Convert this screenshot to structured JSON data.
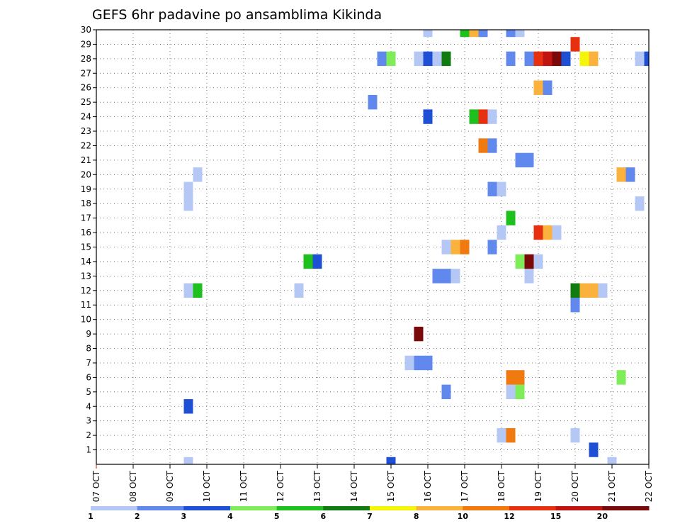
{
  "chart_data": {
    "type": "heatmap",
    "title": "GEFS 6hr padavine po ansamblima Kikinda",
    "x_tick_labels": [
      "07 OCT",
      "08 OCT",
      "09 OCT",
      "10 OCT",
      "11 OCT",
      "12 OCT",
      "13 OCT",
      "14 OCT",
      "15 OCT",
      "16 OCT",
      "17 OCT",
      "18 OCT",
      "19 OCT",
      "20 OCT",
      "21 OCT",
      "22 OCT"
    ],
    "y_tick_labels": [
      "1",
      "2",
      "3",
      "4",
      "5",
      "6",
      "7",
      "8",
      "9",
      "10",
      "11",
      "12",
      "13",
      "14",
      "15",
      "16",
      "17",
      "18",
      "19",
      "20",
      "21",
      "22",
      "23",
      "24",
      "25",
      "26",
      "27",
      "28",
      "29",
      "30"
    ],
    "xlim_days": [
      0,
      15
    ],
    "ylim": [
      0,
      30
    ],
    "grid": true,
    "colorbar": {
      "placement": "bottom",
      "colors": [
        "#b5c8f5",
        "#6189ed",
        "#1e50d6",
        "#7fec5a",
        "#1ec01e",
        "#107c10",
        "#f5f50a",
        "#fab23c",
        "#f07a10",
        "#e6300f",
        "#c01410",
        "#7a0a0a"
      ],
      "labels": [
        "1",
        "2",
        "3",
        "4",
        "5",
        "6",
        "7",
        "8",
        "10",
        "12",
        "15",
        "20"
      ]
    },
    "cells": [
      {
        "t": 2.5,
        "m": 0,
        "c": 1
      },
      {
        "t": 8.0,
        "m": 0,
        "c": 3
      },
      {
        "t": 14.0,
        "m": 0,
        "c": 1
      },
      {
        "t": 13.5,
        "m": 1,
        "c": 3
      },
      {
        "t": 11.0,
        "m": 2,
        "c": 1
      },
      {
        "t": 11.25,
        "m": 2,
        "c": 9
      },
      {
        "t": 13.0,
        "m": 2,
        "c": 1
      },
      {
        "t": 2.5,
        "m": 4,
        "c": 3
      },
      {
        "t": 9.5,
        "m": 5,
        "c": 2
      },
      {
        "t": 11.25,
        "m": 5,
        "c": 1
      },
      {
        "t": 11.5,
        "m": 5,
        "c": 4
      },
      {
        "t": 11.25,
        "m": 6,
        "c": 9
      },
      {
        "t": 11.5,
        "m": 6,
        "c": 9
      },
      {
        "t": 14.25,
        "m": 6,
        "c": 4
      },
      {
        "t": 8.5,
        "m": 7,
        "c": 1
      },
      {
        "t": 8.75,
        "m": 7,
        "c": 2
      },
      {
        "t": 9.0,
        "m": 7,
        "c": 2
      },
      {
        "t": 8.75,
        "m": 9,
        "c": 12
      },
      {
        "t": 13.0,
        "m": 11,
        "c": 2
      },
      {
        "t": 2.5,
        "m": 12,
        "c": 1
      },
      {
        "t": 2.75,
        "m": 12,
        "c": 5
      },
      {
        "t": 5.5,
        "m": 12,
        "c": 1
      },
      {
        "t": 13.0,
        "m": 12,
        "c": 6
      },
      {
        "t": 13.25,
        "m": 12,
        "c": 8
      },
      {
        "t": 13.5,
        "m": 12,
        "c": 8
      },
      {
        "t": 13.75,
        "m": 12,
        "c": 1
      },
      {
        "t": 9.25,
        "m": 13,
        "c": 2
      },
      {
        "t": 9.5,
        "m": 13,
        "c": 2
      },
      {
        "t": 9.75,
        "m": 13,
        "c": 1
      },
      {
        "t": 11.75,
        "m": 13,
        "c": 1
      },
      {
        "t": 5.75,
        "m": 14,
        "c": 5
      },
      {
        "t": 6.0,
        "m": 14,
        "c": 3
      },
      {
        "t": 11.5,
        "m": 14,
        "c": 4
      },
      {
        "t": 11.75,
        "m": 14,
        "c": 12
      },
      {
        "t": 12.0,
        "m": 14,
        "c": 1
      },
      {
        "t": 9.5,
        "m": 15,
        "c": 1
      },
      {
        "t": 9.75,
        "m": 15,
        "c": 8
      },
      {
        "t": 10.0,
        "m": 15,
        "c": 9
      },
      {
        "t": 10.75,
        "m": 15,
        "c": 2
      },
      {
        "t": 11.0,
        "m": 16,
        "c": 1
      },
      {
        "t": 12.0,
        "m": 16,
        "c": 10
      },
      {
        "t": 12.25,
        "m": 16,
        "c": 8
      },
      {
        "t": 12.5,
        "m": 16,
        "c": 1
      },
      {
        "t": 11.25,
        "m": 17,
        "c": 5
      },
      {
        "t": 2.5,
        "m": 18,
        "c": 1
      },
      {
        "t": 14.75,
        "m": 18,
        "c": 1
      },
      {
        "t": 2.5,
        "m": 19,
        "c": 1
      },
      {
        "t": 10.75,
        "m": 19,
        "c": 2
      },
      {
        "t": 11.0,
        "m": 19,
        "c": 1
      },
      {
        "t": 2.75,
        "m": 20,
        "c": 1
      },
      {
        "t": 14.25,
        "m": 20,
        "c": 8
      },
      {
        "t": 14.5,
        "m": 20,
        "c": 2
      },
      {
        "t": 11.5,
        "m": 21,
        "c": 2
      },
      {
        "t": 11.75,
        "m": 21,
        "c": 2
      },
      {
        "t": 10.5,
        "m": 22,
        "c": 9
      },
      {
        "t": 10.75,
        "m": 22,
        "c": 2
      },
      {
        "t": 9.0,
        "m": 24,
        "c": 3
      },
      {
        "t": 10.25,
        "m": 24,
        "c": 5
      },
      {
        "t": 10.5,
        "m": 24,
        "c": 10
      },
      {
        "t": 10.75,
        "m": 24,
        "c": 1
      },
      {
        "t": 7.5,
        "m": 25,
        "c": 2
      },
      {
        "t": 12.0,
        "m": 26,
        "c": 8
      },
      {
        "t": 12.25,
        "m": 26,
        "c": 2
      },
      {
        "t": 7.75,
        "m": 28,
        "c": 2
      },
      {
        "t": 8.0,
        "m": 28,
        "c": 4
      },
      {
        "t": 8.75,
        "m": 28,
        "c": 1
      },
      {
        "t": 9.0,
        "m": 28,
        "c": 3
      },
      {
        "t": 9.25,
        "m": 28,
        "c": 1
      },
      {
        "t": 9.5,
        "m": 28,
        "c": 6
      },
      {
        "t": 11.25,
        "m": 28,
        "c": 2
      },
      {
        "t": 11.75,
        "m": 28,
        "c": 2
      },
      {
        "t": 12.0,
        "m": 28,
        "c": 10
      },
      {
        "t": 12.25,
        "m": 28,
        "c": 11
      },
      {
        "t": 12.5,
        "m": 28,
        "c": 12
      },
      {
        "t": 12.75,
        "m": 28,
        "c": 3
      },
      {
        "t": 13.25,
        "m": 28,
        "c": 7
      },
      {
        "t": 13.5,
        "m": 28,
        "c": 8
      },
      {
        "t": 14.75,
        "m": 28,
        "c": 1
      },
      {
        "t": 15.0,
        "m": 28,
        "c": 3
      },
      {
        "t": 13.0,
        "m": 29,
        "c": 10
      },
      {
        "t": 9.0,
        "m": 30,
        "c": 1
      },
      {
        "t": 10.0,
        "m": 30,
        "c": 5
      },
      {
        "t": 10.25,
        "m": 30,
        "c": 8
      },
      {
        "t": 10.5,
        "m": 30,
        "c": 2
      },
      {
        "t": 11.25,
        "m": 30,
        "c": 2
      },
      {
        "t": 11.5,
        "m": 30,
        "c": 1
      }
    ]
  }
}
